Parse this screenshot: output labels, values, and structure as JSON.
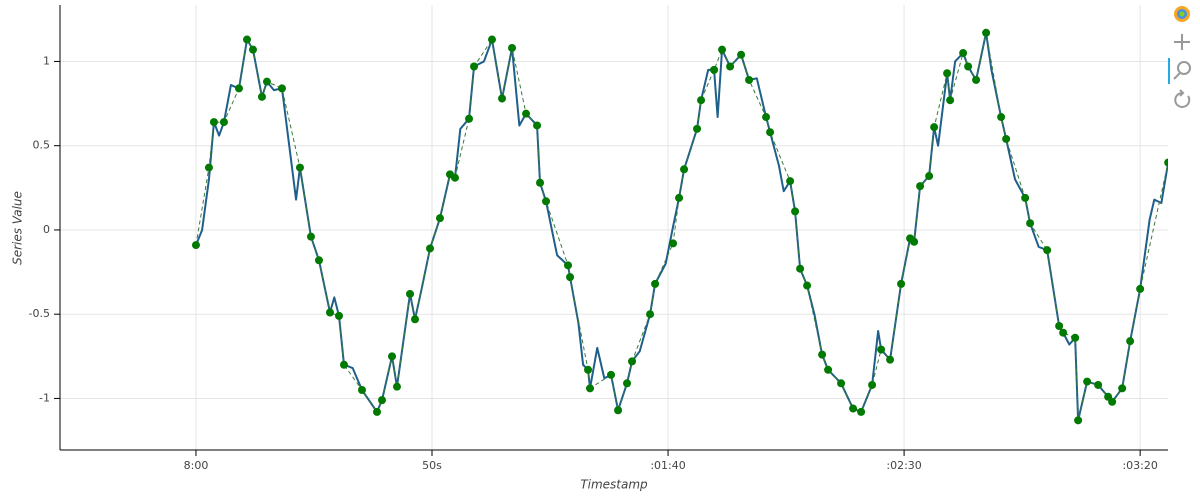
{
  "chart_data": {
    "type": "line",
    "xlabel": "Timestamp",
    "ylabel": "Series Value",
    "xlim": [
      -28.8,
      205.9
    ],
    "ylim": [
      -1.306,
      1.335
    ],
    "xticks": [
      {
        "value": 0,
        "label": "8:00"
      },
      {
        "value": 50,
        "label": "50s"
      },
      {
        "value": 100,
        "label": ":01:40"
      },
      {
        "value": 150,
        "label": ":02:30"
      },
      {
        "value": 200,
        "label": ":03:20"
      }
    ],
    "yticks": [
      -1,
      -0.5,
      0,
      0.5,
      1
    ],
    "grid": true,
    "series": [
      {
        "color": "#1f5f8b",
        "dash": false,
        "markers": false,
        "x": [
          0,
          1.3,
          2.75,
          3.81,
          4.9,
          5.93,
          7.4,
          9.11,
          10.81,
          12.08,
          13.98,
          15.04,
          16.5,
          18.22,
          20.3,
          21.2,
          22.03,
          24.36,
          26.06,
          28.39,
          29.3,
          30.3,
          31.36,
          33.2,
          35.17,
          38.35,
          39.41,
          41.53,
          42.58,
          45.34,
          46.4,
          47.8,
          49.58,
          51.69,
          53.81,
          54.87,
          56.0,
          57.84,
          58.9,
          61.0,
          62.71,
          64.83,
          66.95,
          68.5,
          69.92,
          72.25,
          72.88,
          74.15,
          76.5,
          78.81,
          79.24,
          81.0,
          82.0,
          83.05,
          83.47,
          85.0,
          86.5,
          87.92,
          89.41,
          91.31,
          92.37,
          94.0,
          96.19,
          97.25,
          99.5,
          101.06,
          102.33,
          103.39,
          106.14,
          106.99,
          108.5,
          109.75,
          110.5,
          111.44,
          113.14,
          115.47,
          117.16,
          118.8,
          120.76,
          121.61,
          123.5,
          124.5,
          125.85,
          126.91,
          127.97,
          129.45,
          131.0,
          132.63,
          133.9,
          136.65,
          139.19,
          140.89,
          143.22,
          144.5,
          145.13,
          147.03,
          149.36,
          151.27,
          152.12,
          153.39,
          155.3,
          156.36,
          157.2,
          159.11,
          159.75,
          160.8,
          162.5,
          163.56,
          165.25,
          167.37,
          168.5,
          170.55,
          171.61,
          173.5,
          175.64,
          176.69,
          178.5,
          180.3,
          182.84,
          183.69,
          185.0,
          186.23,
          186.86,
          188.77,
          191.1,
          193.22,
          194.07,
          196.19,
          197.88,
          200.0,
          202.0,
          203.0,
          204.5,
          205.93
        ],
        "values": [
          -0.09,
          0.0,
          0.3,
          0.64,
          0.56,
          0.64,
          0.86,
          0.84,
          1.13,
          1.07,
          0.79,
          0.88,
          0.83,
          0.84,
          0.38,
          0.18,
          0.37,
          -0.04,
          -0.18,
          -0.49,
          -0.4,
          -0.51,
          -0.8,
          -0.82,
          -0.95,
          -1.08,
          -1.01,
          -0.75,
          -0.93,
          -0.38,
          -0.53,
          -0.35,
          -0.11,
          0.07,
          0.33,
          0.31,
          0.6,
          0.66,
          0.97,
          1.0,
          1.13,
          0.78,
          1.08,
          0.62,
          0.69,
          0.62,
          0.28,
          0.17,
          -0.15,
          -0.21,
          -0.28,
          -0.55,
          -0.8,
          -0.83,
          -0.94,
          -0.7,
          -0.88,
          -0.86,
          -1.07,
          -0.91,
          -0.78,
          -0.72,
          -0.5,
          -0.32,
          -0.2,
          0.02,
          0.19,
          0.36,
          0.6,
          0.77,
          0.95,
          0.95,
          0.67,
          1.07,
          0.97,
          1.04,
          0.89,
          0.9,
          0.67,
          0.58,
          0.38,
          0.23,
          0.29,
          0.11,
          -0.23,
          -0.33,
          -0.5,
          -0.74,
          -0.83,
          -0.91,
          -1.06,
          -1.08,
          -0.92,
          -0.6,
          -0.71,
          -0.77,
          -0.32,
          -0.05,
          -0.07,
          0.26,
          0.32,
          0.61,
          0.5,
          0.93,
          0.77,
          1.0,
          1.05,
          0.97,
          0.89,
          1.17,
          0.95,
          0.67,
          0.54,
          0.3,
          0.19,
          0.04,
          -0.1,
          -0.12,
          -0.57,
          -0.61,
          -0.68,
          -0.64,
          -1.13,
          -0.9,
          -0.92,
          -0.99,
          -1.02,
          -0.94,
          -0.66,
          -0.35,
          0.06,
          0.18,
          0.16,
          0.4
        ]
      },
      {
        "color": "#3a7a3a",
        "marker_color": "#007a00",
        "dash": true,
        "markers": true,
        "x": [
          0,
          2.75,
          3.81,
          5.93,
          9.11,
          10.81,
          12.08,
          13.98,
          15.04,
          18.22,
          22.03,
          24.36,
          26.06,
          28.39,
          30.3,
          31.36,
          35.17,
          38.35,
          39.41,
          41.53,
          42.58,
          45.34,
          46.4,
          49.58,
          51.69,
          53.81,
          54.87,
          57.84,
          58.9,
          62.71,
          64.83,
          66.95,
          69.92,
          72.25,
          72.88,
          74.15,
          78.81,
          79.24,
          83.05,
          83.47,
          87.92,
          89.41,
          91.31,
          92.37,
          96.19,
          97.25,
          101.06,
          102.33,
          103.39,
          106.14,
          106.99,
          109.75,
          111.44,
          113.14,
          115.47,
          117.16,
          120.76,
          121.61,
          125.85,
          126.91,
          127.97,
          129.45,
          132.63,
          133.9,
          136.65,
          139.19,
          140.89,
          143.22,
          145.13,
          147.03,
          149.36,
          151.27,
          152.12,
          153.39,
          155.3,
          156.36,
          159.11,
          159.75,
          162.5,
          163.56,
          165.25,
          167.37,
          170.55,
          171.61,
          175.64,
          176.69,
          180.3,
          182.84,
          183.69,
          186.23,
          186.86,
          188.77,
          191.1,
          193.22,
          194.07,
          196.19,
          197.88,
          200.0,
          205.93
        ],
        "values": [
          -0.09,
          0.37,
          0.64,
          0.64,
          0.84,
          1.13,
          1.07,
          0.79,
          0.88,
          0.84,
          0.37,
          -0.04,
          -0.18,
          -0.49,
          -0.51,
          -0.8,
          -0.95,
          -1.08,
          -1.01,
          -0.75,
          -0.93,
          -0.38,
          -0.53,
          -0.11,
          0.07,
          0.33,
          0.31,
          0.66,
          0.97,
          1.13,
          0.78,
          1.08,
          0.69,
          0.62,
          0.28,
          0.17,
          -0.21,
          -0.28,
          -0.83,
          -0.94,
          -0.86,
          -1.07,
          -0.91,
          -0.78,
          -0.5,
          -0.32,
          -0.08,
          0.19,
          0.36,
          0.6,
          0.77,
          0.95,
          1.07,
          0.97,
          1.04,
          0.89,
          0.67,
          0.58,
          0.29,
          0.11,
          -0.23,
          -0.33,
          -0.74,
          -0.83,
          -0.91,
          -1.06,
          -1.08,
          -0.92,
          -0.71,
          -0.77,
          -0.32,
          -0.05,
          -0.07,
          0.26,
          0.32,
          0.61,
          0.93,
          0.77,
          1.05,
          0.97,
          0.89,
          1.17,
          0.67,
          0.54,
          0.19,
          0.04,
          -0.12,
          -0.57,
          -0.61,
          -0.64,
          -1.13,
          -0.9,
          -0.92,
          -0.99,
          -1.02,
          -0.94,
          -0.66,
          -0.35,
          0.4
        ]
      }
    ]
  }
}
